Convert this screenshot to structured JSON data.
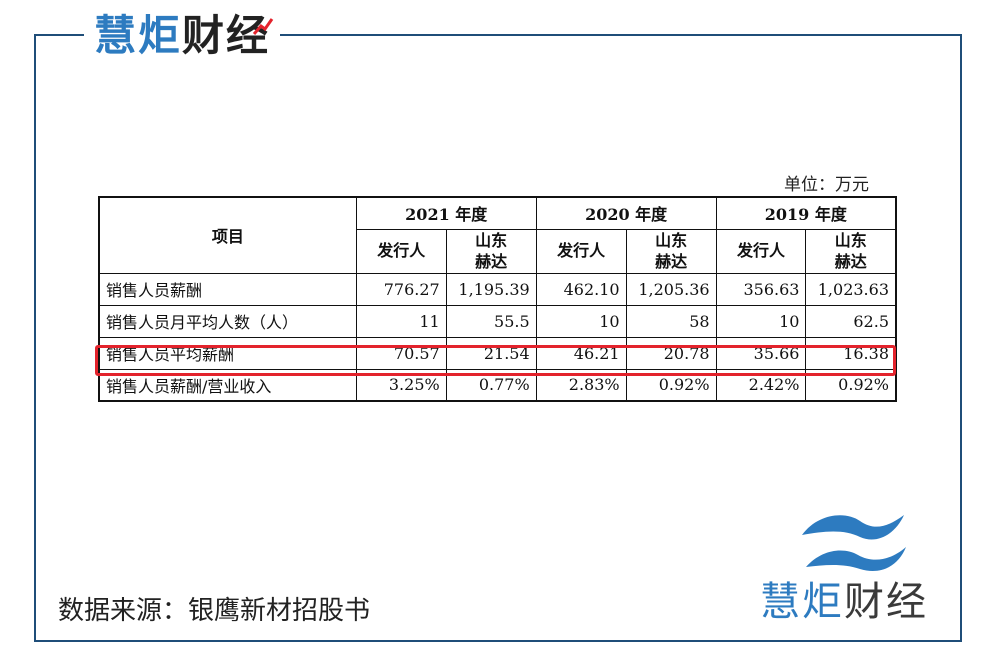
{
  "brand": {
    "part1": "慧炬",
    "part2": "财经"
  },
  "unit_label": "单位：万元",
  "table": {
    "item_header": "项目",
    "years": [
      "2021 年度",
      "2020 年度",
      "2019 年度"
    ],
    "sub_headers": [
      "发行人",
      "山东\n赫达",
      "发行人",
      "山东\n赫达",
      "发行人",
      "山东\n赫达"
    ],
    "rows": [
      {
        "label": "销售人员薪酬",
        "values": [
          "776.27",
          "1,195.39",
          "462.10",
          "1,205.36",
          "356.63",
          "1,023.63"
        ]
      },
      {
        "label": "销售人员月平均人数（人）",
        "values": [
          "11",
          "55.5",
          "10",
          "58",
          "10",
          "62.5"
        ]
      },
      {
        "label": "销售人员平均薪酬",
        "values": [
          "70.57",
          "21.54",
          "46.21",
          "20.78",
          "35.66",
          "16.38"
        ]
      },
      {
        "label": "销售人员薪酬/营业收入",
        "values": [
          "3.25%",
          "0.77%",
          "2.83%",
          "0.92%",
          "2.42%",
          "0.92%"
        ]
      }
    ]
  },
  "source_text": "数据来源：银鹰新材招股书",
  "colors": {
    "frame": "#1f4e79",
    "brand_blue": "#2d7bc0",
    "highlight": "#e3232c"
  }
}
